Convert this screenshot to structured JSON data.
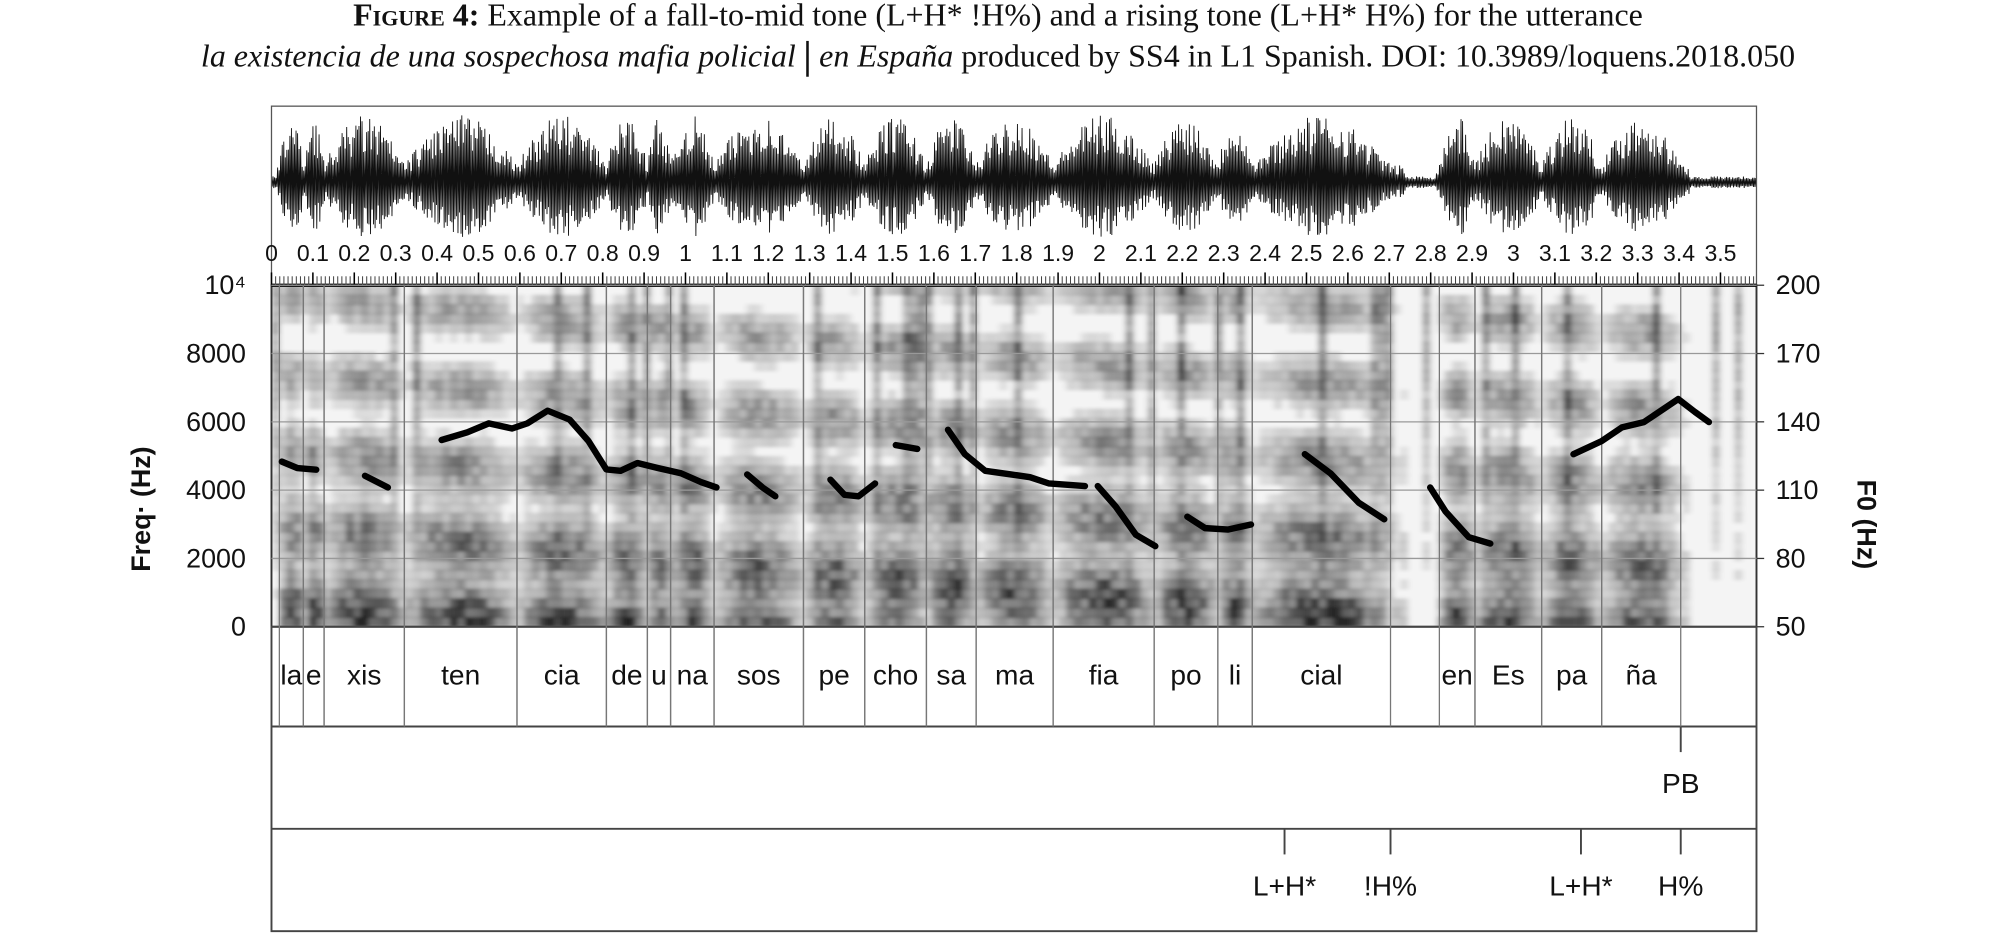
{
  "caption": {
    "label": "Figure 4:",
    "text": "Example of a fall-to-mid tone (L+H* !H%) and a rising tone (L+H* H%) for the utterance",
    "utterance_part1": "la existencia de una sospechosa mafia policial",
    "utterance_part2": "en España",
    "rest": "produced by SS4 in L1 Spanish. DOI: 10.3989/loquens.2018.050"
  },
  "chart_data": {
    "type": "spectrogram",
    "ylabel": "Freq· (Hz)",
    "y2label": "F0 (Hz)",
    "xlim": [
      0,
      3.587
    ],
    "xticks": [
      0,
      0.1,
      0.2,
      0.3,
      0.4,
      0.5,
      0.6,
      0.7,
      0.8,
      0.9,
      1,
      1.1,
      1.2,
      1.3,
      1.4,
      1.5,
      1.6,
      1.7,
      1.8,
      1.9,
      2,
      2.1,
      2.2,
      2.3,
      2.4,
      2.5,
      2.6,
      2.7,
      2.8,
      2.9,
      3,
      3.1,
      3.2,
      3.3,
      3.4,
      3.5
    ],
    "ylim": [
      0,
      10000
    ],
    "yticks": [
      {
        "value": 10000,
        "label": "10⁴"
      },
      8000,
      6000,
      4000,
      2000,
      0
    ],
    "y2lim": [
      50,
      200
    ],
    "y2ticks": [
      200,
      170,
      140,
      110,
      80,
      50
    ],
    "grid": true,
    "series": [
      {
        "name": "F0",
        "color": "#000000",
        "axis": "y2",
        "x": [
          0.025,
          0.062,
          0.108,
          null,
          0.226,
          0.281,
          null,
          0.411,
          0.473,
          0.525,
          0.581,
          0.618,
          0.667,
          0.72,
          0.766,
          0.809,
          0.843,
          0.884,
          0.933,
          0.989,
          1.038,
          1.075,
          null,
          1.149,
          1.186,
          1.217,
          null,
          1.35,
          1.384,
          1.418,
          1.458,
          null,
          1.508,
          1.56,
          null,
          1.634,
          1.675,
          1.724,
          1.786,
          1.832,
          1.878,
          1.965,
          null,
          1.996,
          2.039,
          2.088,
          2.135,
          null,
          2.212,
          2.255,
          2.311,
          2.366,
          null,
          2.496,
          2.558,
          2.626,
          2.688,
          null,
          2.799,
          2.836,
          2.892,
          2.944,
          null,
          3.145,
          3.213,
          3.262,
          3.315,
          3.361,
          3.398,
          3.438,
          3.472
        ],
        "values": [
          122.5,
          119.7,
          119.0,
          null,
          116.3,
          111.2,
          null,
          132.0,
          135.4,
          139.3,
          137.1,
          139.3,
          144.9,
          141.0,
          131.5,
          119.1,
          118.5,
          121.9,
          119.7,
          117.4,
          113.5,
          111.2,
          null,
          116.9,
          111.2,
          107.3,
          null,
          114.6,
          107.9,
          107.3,
          112.9,
          null,
          129.8,
          128.1,
          null,
          136.5,
          125.8,
          118.5,
          116.9,
          115.7,
          112.9,
          111.8,
          null,
          111.8,
          102.8,
          90.4,
          85.4,
          null,
          98.3,
          93.3,
          92.7,
          94.9,
          null,
          125.8,
          117.4,
          104.5,
          97.2,
          null,
          111.2,
          100.6,
          89.3,
          86.5,
          null,
          125.8,
          131.5,
          137.6,
          139.9,
          145.5,
          150.0,
          144.4,
          139.9
        ]
      }
    ],
    "syllables": [
      {
        "label": "la",
        "start": 0.019,
        "end": 0.077
      },
      {
        "label": "e",
        "start": 0.077,
        "end": 0.127
      },
      {
        "label": "xis",
        "start": 0.127,
        "end": 0.321
      },
      {
        "label": "ten",
        "start": 0.321,
        "end": 0.593
      },
      {
        "label": "cia",
        "start": 0.593,
        "end": 0.809
      },
      {
        "label": "de",
        "start": 0.809,
        "end": 0.908
      },
      {
        "label": "u",
        "start": 0.908,
        "end": 0.964
      },
      {
        "label": "na",
        "start": 0.964,
        "end": 1.069
      },
      {
        "label": "sos",
        "start": 1.069,
        "end": 1.285
      },
      {
        "label": "pe",
        "start": 1.285,
        "end": 1.433
      },
      {
        "label": "cho",
        "start": 1.433,
        "end": 1.582
      },
      {
        "label": "sa",
        "start": 1.582,
        "end": 1.702
      },
      {
        "label": "ma",
        "start": 1.702,
        "end": 1.888
      },
      {
        "label": "fia",
        "start": 1.888,
        "end": 2.132
      },
      {
        "label": "po",
        "start": 2.132,
        "end": 2.286
      },
      {
        "label": "li",
        "start": 2.286,
        "end": 2.369
      },
      {
        "label": "cial",
        "start": 2.369,
        "end": 2.703
      },
      {
        "label": "en",
        "start": 2.821,
        "end": 2.907
      },
      {
        "label": "Es",
        "start": 2.907,
        "end": 3.068
      },
      {
        "label": "pa",
        "start": 3.068,
        "end": 3.213
      },
      {
        "label": "ña",
        "start": 3.213,
        "end": 3.404
      }
    ],
    "breaks": [
      {
        "label": "PB",
        "time": 3.404
      }
    ],
    "tones": [
      {
        "label": "L+H*",
        "time": 2.447
      },
      {
        "label": "!H%",
        "time": 2.703
      },
      {
        "label": "L+H*",
        "time": 3.163
      },
      {
        "label": "H%",
        "time": 3.404
      }
    ]
  }
}
